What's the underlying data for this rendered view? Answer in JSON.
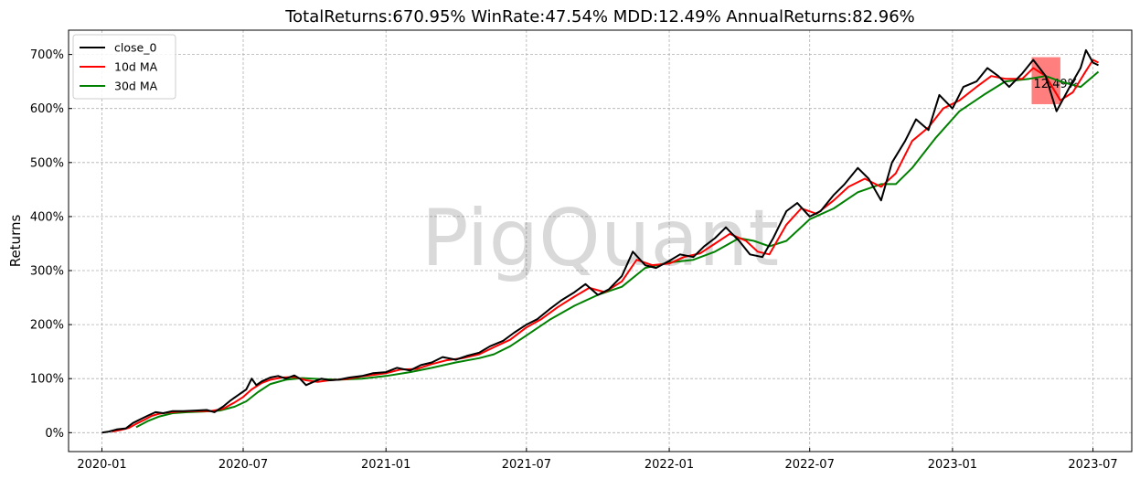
{
  "chart_data": {
    "type": "line",
    "title": "TotalReturns:670.95%  WinRate:47.54%  MDD:12.49%  AnnualReturns:82.96%",
    "xlabel": "",
    "ylabel": "Returns",
    "watermark": "PigQuant",
    "x_range": [
      "2019-11-19",
      "2023-08-20"
    ],
    "ylim": [
      -35,
      745
    ],
    "grid": true,
    "legend_position": "upper-left",
    "x_ticks": [
      {
        "date": "2020-01-01",
        "label": "2020-01"
      },
      {
        "date": "2020-07-01",
        "label": "2020-07"
      },
      {
        "date": "2021-01-01",
        "label": "2021-01"
      },
      {
        "date": "2021-07-01",
        "label": "2021-07"
      },
      {
        "date": "2022-01-01",
        "label": "2022-01"
      },
      {
        "date": "2022-07-01",
        "label": "2022-07"
      },
      {
        "date": "2023-01-01",
        "label": "2023-01"
      },
      {
        "date": "2023-07-01",
        "label": "2023-07"
      }
    ],
    "y_ticks": [
      {
        "value": 0,
        "label": "0%"
      },
      {
        "value": 100,
        "label": "100%"
      },
      {
        "value": 200,
        "label": "200%"
      },
      {
        "value": 300,
        "label": "300%"
      },
      {
        "value": 400,
        "label": "400%"
      },
      {
        "value": 500,
        "label": "500%"
      },
      {
        "value": 600,
        "label": "600%"
      },
      {
        "value": 700,
        "label": "700%"
      }
    ],
    "series": [
      {
        "name": "close_0",
        "color": "#000000",
        "points": [
          [
            "2020-01-01",
            0
          ],
          [
            "2020-01-10",
            2
          ],
          [
            "2020-01-20",
            6
          ],
          [
            "2020-02-01",
            8
          ],
          [
            "2020-02-10",
            18
          ],
          [
            "2020-02-20",
            25
          ],
          [
            "2020-03-01",
            32
          ],
          [
            "2020-03-10",
            38
          ],
          [
            "2020-03-20",
            36
          ],
          [
            "2020-04-01",
            40
          ],
          [
            "2020-04-15",
            40
          ],
          [
            "2020-05-01",
            41
          ],
          [
            "2020-05-15",
            42
          ],
          [
            "2020-05-25",
            38
          ],
          [
            "2020-06-05",
            48
          ],
          [
            "2020-06-15",
            60
          ],
          [
            "2020-06-25",
            70
          ],
          [
            "2020-07-05",
            80
          ],
          [
            "2020-07-12",
            100
          ],
          [
            "2020-07-18",
            88
          ],
          [
            "2020-07-25",
            95
          ],
          [
            "2020-08-05",
            102
          ],
          [
            "2020-08-15",
            105
          ],
          [
            "2020-08-25",
            100
          ],
          [
            "2020-09-05",
            106
          ],
          [
            "2020-09-12",
            100
          ],
          [
            "2020-09-20",
            88
          ],
          [
            "2020-10-01",
            95
          ],
          [
            "2020-10-10",
            100
          ],
          [
            "2020-10-20",
            97
          ],
          [
            "2020-11-01",
            98
          ],
          [
            "2020-11-15",
            102
          ],
          [
            "2020-12-01",
            105
          ],
          [
            "2020-12-15",
            110
          ],
          [
            "2021-01-01",
            112
          ],
          [
            "2021-01-15",
            120
          ],
          [
            "2021-02-01",
            115
          ],
          [
            "2021-02-15",
            125
          ],
          [
            "2021-03-01",
            130
          ],
          [
            "2021-03-15",
            140
          ],
          [
            "2021-04-01",
            135
          ],
          [
            "2021-04-15",
            142
          ],
          [
            "2021-05-01",
            148
          ],
          [
            "2021-05-15",
            160
          ],
          [
            "2021-06-01",
            170
          ],
          [
            "2021-06-15",
            185
          ],
          [
            "2021-07-01",
            200
          ],
          [
            "2021-07-15",
            210
          ],
          [
            "2021-08-01",
            230
          ],
          [
            "2021-08-15",
            245
          ],
          [
            "2021-09-01",
            260
          ],
          [
            "2021-09-15",
            275
          ],
          [
            "2021-10-01",
            255
          ],
          [
            "2021-10-15",
            265
          ],
          [
            "2021-11-01",
            290
          ],
          [
            "2021-11-15",
            335
          ],
          [
            "2021-12-01",
            310
          ],
          [
            "2021-12-15",
            305
          ],
          [
            "2022-01-01",
            318
          ],
          [
            "2022-01-15",
            330
          ],
          [
            "2022-02-01",
            325
          ],
          [
            "2022-02-15",
            345
          ],
          [
            "2022-03-01",
            360
          ],
          [
            "2022-03-15",
            380
          ],
          [
            "2022-04-01",
            355
          ],
          [
            "2022-04-15",
            330
          ],
          [
            "2022-05-01",
            325
          ],
          [
            "2022-05-15",
            360
          ],
          [
            "2022-06-01",
            410
          ],
          [
            "2022-06-15",
            425
          ],
          [
            "2022-07-01",
            400
          ],
          [
            "2022-07-15",
            410
          ],
          [
            "2022-08-01",
            440
          ],
          [
            "2022-08-15",
            460
          ],
          [
            "2022-09-01",
            490
          ],
          [
            "2022-09-15",
            470
          ],
          [
            "2022-10-01",
            430
          ],
          [
            "2022-10-15",
            500
          ],
          [
            "2022-11-01",
            540
          ],
          [
            "2022-11-15",
            580
          ],
          [
            "2022-12-01",
            560
          ],
          [
            "2022-12-15",
            625
          ],
          [
            "2023-01-01",
            600
          ],
          [
            "2023-01-15",
            640
          ],
          [
            "2023-02-01",
            650
          ],
          [
            "2023-02-15",
            675
          ],
          [
            "2023-03-01",
            660
          ],
          [
            "2023-03-15",
            640
          ],
          [
            "2023-04-01",
            665
          ],
          [
            "2023-04-15",
            690
          ],
          [
            "2023-05-01",
            660
          ],
          [
            "2023-05-15",
            595
          ],
          [
            "2023-06-01",
            640
          ],
          [
            "2023-06-15",
            675
          ],
          [
            "2023-06-22",
            708
          ],
          [
            "2023-07-01",
            685
          ],
          [
            "2023-07-08",
            680
          ]
        ]
      },
      {
        "name": "10d MA",
        "color": "#ff0000",
        "points": [
          [
            "2020-01-14",
            2
          ],
          [
            "2020-01-25",
            5
          ],
          [
            "2020-02-05",
            9
          ],
          [
            "2020-02-15",
            17
          ],
          [
            "2020-02-25",
            24
          ],
          [
            "2020-03-05",
            31
          ],
          [
            "2020-03-15",
            35
          ],
          [
            "2020-03-25",
            37
          ],
          [
            "2020-04-10",
            39
          ],
          [
            "2020-05-01",
            40
          ],
          [
            "2020-05-20",
            40
          ],
          [
            "2020-06-05",
            44
          ],
          [
            "2020-06-20",
            56
          ],
          [
            "2020-07-01",
            66
          ],
          [
            "2020-07-12",
            80
          ],
          [
            "2020-07-25",
            92
          ],
          [
            "2020-08-05",
            98
          ],
          [
            "2020-08-20",
            102
          ],
          [
            "2020-09-05",
            103
          ],
          [
            "2020-09-20",
            97
          ],
          [
            "2020-10-05",
            94
          ],
          [
            "2020-10-20",
            97
          ],
          [
            "2020-11-10",
            99
          ],
          [
            "2020-12-01",
            104
          ],
          [
            "2021-01-01",
            110
          ],
          [
            "2021-01-20",
            117
          ],
          [
            "2021-02-10",
            118
          ],
          [
            "2021-03-01",
            127
          ],
          [
            "2021-03-20",
            134
          ],
          [
            "2021-04-10",
            138
          ],
          [
            "2021-05-01",
            145
          ],
          [
            "2021-05-20",
            158
          ],
          [
            "2021-06-10",
            172
          ],
          [
            "2021-07-01",
            195
          ],
          [
            "2021-07-20",
            210
          ],
          [
            "2021-08-10",
            232
          ],
          [
            "2021-09-01",
            252
          ],
          [
            "2021-09-20",
            268
          ],
          [
            "2021-10-10",
            260
          ],
          [
            "2021-11-01",
            280
          ],
          [
            "2021-11-20",
            320
          ],
          [
            "2021-12-10",
            310
          ],
          [
            "2022-01-01",
            313
          ],
          [
            "2022-01-20",
            325
          ],
          [
            "2022-02-10",
            332
          ],
          [
            "2022-03-01",
            350
          ],
          [
            "2022-03-20",
            368
          ],
          [
            "2022-04-10",
            355
          ],
          [
            "2022-04-25",
            335
          ],
          [
            "2022-05-10",
            330
          ],
          [
            "2022-06-01",
            385
          ],
          [
            "2022-06-20",
            415
          ],
          [
            "2022-07-10",
            405
          ],
          [
            "2022-08-01",
            430
          ],
          [
            "2022-08-20",
            455
          ],
          [
            "2022-09-10",
            470
          ],
          [
            "2022-10-01",
            455
          ],
          [
            "2022-10-20",
            480
          ],
          [
            "2022-11-10",
            540
          ],
          [
            "2022-12-01",
            565
          ],
          [
            "2022-12-20",
            600
          ],
          [
            "2023-01-10",
            615
          ],
          [
            "2023-02-01",
            640
          ],
          [
            "2023-02-20",
            660
          ],
          [
            "2023-03-10",
            655
          ],
          [
            "2023-04-01",
            655
          ],
          [
            "2023-04-15",
            675
          ],
          [
            "2023-05-01",
            660
          ],
          [
            "2023-05-20",
            615
          ],
          [
            "2023-06-05",
            630
          ],
          [
            "2023-06-20",
            665
          ],
          [
            "2023-07-01",
            690
          ],
          [
            "2023-07-08",
            685
          ]
        ]
      },
      {
        "name": "30d MA",
        "color": "#008000",
        "points": [
          [
            "2020-02-14",
            10
          ],
          [
            "2020-03-01",
            22
          ],
          [
            "2020-03-15",
            30
          ],
          [
            "2020-04-01",
            36
          ],
          [
            "2020-04-20",
            38
          ],
          [
            "2020-05-10",
            39
          ],
          [
            "2020-06-01",
            41
          ],
          [
            "2020-06-20",
            48
          ],
          [
            "2020-07-05",
            58
          ],
          [
            "2020-07-20",
            75
          ],
          [
            "2020-08-05",
            90
          ],
          [
            "2020-08-25",
            98
          ],
          [
            "2020-09-15",
            101
          ],
          [
            "2020-10-10",
            99
          ],
          [
            "2020-11-01",
            98
          ],
          [
            "2020-12-01",
            100
          ],
          [
            "2021-01-01",
            105
          ],
          [
            "2021-02-01",
            112
          ],
          [
            "2021-03-01",
            120
          ],
          [
            "2021-04-01",
            130
          ],
          [
            "2021-05-01",
            138
          ],
          [
            "2021-05-20",
            145
          ],
          [
            "2021-06-10",
            160
          ],
          [
            "2021-07-01",
            180
          ],
          [
            "2021-08-01",
            210
          ],
          [
            "2021-09-01",
            235
          ],
          [
            "2021-10-01",
            255
          ],
          [
            "2021-11-01",
            270
          ],
          [
            "2021-12-01",
            305
          ],
          [
            "2022-01-01",
            315
          ],
          [
            "2022-02-01",
            320
          ],
          [
            "2022-03-01",
            335
          ],
          [
            "2022-04-01",
            360
          ],
          [
            "2022-04-20",
            355
          ],
          [
            "2022-05-10",
            345
          ],
          [
            "2022-06-01",
            355
          ],
          [
            "2022-07-01",
            395
          ],
          [
            "2022-08-01",
            415
          ],
          [
            "2022-09-01",
            445
          ],
          [
            "2022-10-01",
            460
          ],
          [
            "2022-10-20",
            460
          ],
          [
            "2022-11-10",
            490
          ],
          [
            "2022-12-10",
            545
          ],
          [
            "2023-01-10",
            595
          ],
          [
            "2023-02-10",
            625
          ],
          [
            "2023-03-10",
            650
          ],
          [
            "2023-04-10",
            655
          ],
          [
            "2023-05-01",
            660
          ],
          [
            "2023-05-20",
            650
          ],
          [
            "2023-06-15",
            640
          ],
          [
            "2023-07-08",
            668
          ]
        ]
      }
    ],
    "drawdown": {
      "label": "12.49%",
      "start": "2023-04-13",
      "end": "2023-05-20",
      "top": 695,
      "bottom": 608,
      "color": "#ff0000"
    }
  }
}
